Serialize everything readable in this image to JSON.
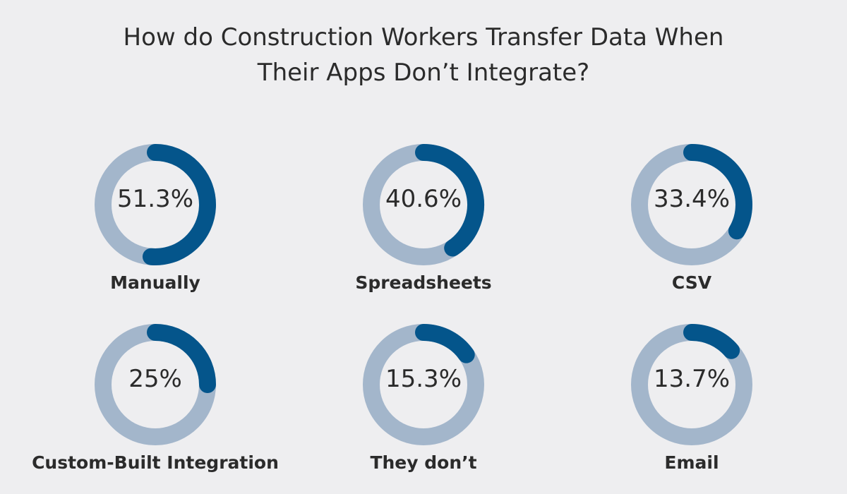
{
  "chart_data": {
    "type": "pie",
    "variant": "donut-grid",
    "title_lines": [
      "How do Construction Workers Transfer Data When",
      "Their Apps Don’t Integrate?"
    ],
    "items": [
      {
        "label": "Manually",
        "value": 51.3,
        "display": "51.3%"
      },
      {
        "label": "Spreadsheets",
        "value": 40.6,
        "display": "40.6%"
      },
      {
        "label": "CSV",
        "value": 33.4,
        "display": "33.4%"
      },
      {
        "label": "Custom-Built Integration",
        "value": 25,
        "display": "25%"
      },
      {
        "label": "They don’t",
        "value": 15.3,
        "display": "15.3%"
      },
      {
        "label": "Email",
        "value": 13.7,
        "display": "13.7%"
      }
    ],
    "max_value": 100,
    "colors": {
      "track": "#a3b6cb",
      "fill": "#04558b",
      "text": "#2b2b2b",
      "background": "#eeeef0"
    },
    "legend": "none",
    "grid": false
  }
}
